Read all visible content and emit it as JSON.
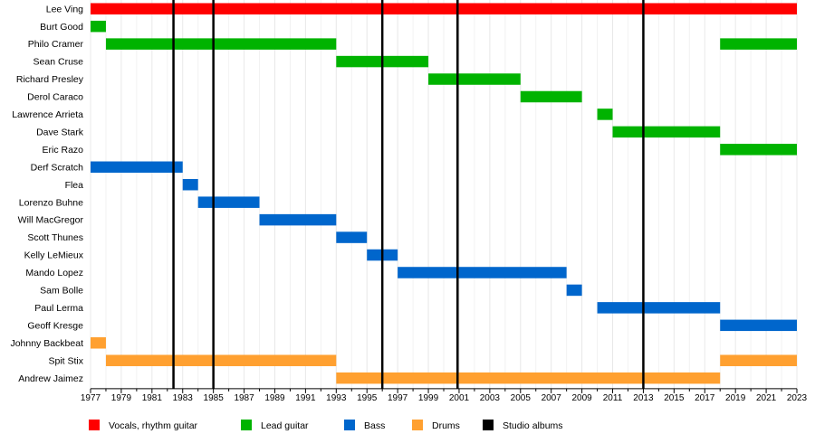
{
  "chart_data": {
    "type": "timeline",
    "x_range": [
      1977,
      2023
    ],
    "x_ticks": [
      "1977",
      "1979",
      "1981",
      "1983",
      "1985",
      "1987",
      "1989",
      "1991",
      "1993",
      "1995",
      "1997",
      "1999",
      "2001",
      "2003",
      "2005",
      "2007",
      "2009",
      "2011",
      "2013",
      "2015",
      "2017",
      "2019",
      "2021",
      "2023"
    ],
    "grid": true,
    "legend_position": "bottom",
    "roles": [
      {
        "key": "vocals",
        "label": "Vocals, rhythm guitar",
        "color": "#ff0000"
      },
      {
        "key": "lead",
        "label": "Lead guitar",
        "color": "#00b300"
      },
      {
        "key": "bass",
        "label": "Bass",
        "color": "#0066cc"
      },
      {
        "key": "drums",
        "label": "Drums",
        "color": "#ffa030"
      },
      {
        "key": "albums",
        "label": "Studio albums",
        "color": "#000000"
      }
    ],
    "members": [
      {
        "name": "Lee Ving",
        "role": "vocals",
        "spans": [
          [
            1977,
            2023
          ]
        ]
      },
      {
        "name": "Burt Good",
        "role": "lead",
        "spans": [
          [
            1977,
            1978
          ]
        ]
      },
      {
        "name": "Philo Cramer",
        "role": "lead",
        "spans": [
          [
            1978,
            1993
          ],
          [
            2018,
            2023
          ]
        ]
      },
      {
        "name": "Sean Cruse",
        "role": "lead",
        "spans": [
          [
            1993,
            1999
          ]
        ]
      },
      {
        "name": "Richard Presley",
        "role": "lead",
        "spans": [
          [
            1999,
            2005
          ]
        ]
      },
      {
        "name": "Derol Caraco",
        "role": "lead",
        "spans": [
          [
            2005,
            2009
          ]
        ]
      },
      {
        "name": "Lawrence Arrieta",
        "role": "lead",
        "spans": [
          [
            2010,
            2011
          ]
        ]
      },
      {
        "name": "Dave Stark",
        "role": "lead",
        "spans": [
          [
            2011,
            2018
          ]
        ]
      },
      {
        "name": "Eric Razo",
        "role": "lead",
        "spans": [
          [
            2018,
            2023
          ]
        ]
      },
      {
        "name": "Derf Scratch",
        "role": "bass",
        "spans": [
          [
            1977,
            1983
          ]
        ]
      },
      {
        "name": "Flea",
        "role": "bass",
        "spans": [
          [
            1983,
            1984
          ]
        ]
      },
      {
        "name": "Lorenzo Buhne",
        "role": "bass",
        "spans": [
          [
            1984,
            1988
          ]
        ]
      },
      {
        "name": "Will MacGregor",
        "role": "bass",
        "spans": [
          [
            1988,
            1993
          ]
        ]
      },
      {
        "name": "Scott Thunes",
        "role": "bass",
        "spans": [
          [
            1993,
            1995
          ]
        ]
      },
      {
        "name": "Kelly LeMieux",
        "role": "bass",
        "spans": [
          [
            1995,
            1997
          ]
        ]
      },
      {
        "name": "Mando Lopez",
        "role": "bass",
        "spans": [
          [
            1997,
            2008
          ]
        ]
      },
      {
        "name": "Sam Bolle",
        "role": "bass",
        "spans": [
          [
            2008,
            2009
          ]
        ]
      },
      {
        "name": "Paul Lerma",
        "role": "bass",
        "spans": [
          [
            2010,
            2018
          ]
        ]
      },
      {
        "name": "Geoff Kresge",
        "role": "bass",
        "spans": [
          [
            2018,
            2023
          ]
        ]
      },
      {
        "name": "Johnny Backbeat",
        "role": "drums",
        "spans": [
          [
            1977,
            1978
          ]
        ]
      },
      {
        "name": "Spit Stix",
        "role": "drums",
        "spans": [
          [
            1978,
            1993
          ],
          [
            2018,
            2023
          ]
        ]
      },
      {
        "name": "Andrew Jaimez",
        "role": "drums",
        "spans": [
          [
            1993,
            2018
          ]
        ]
      }
    ],
    "album_lines": [
      1982.4,
      1985,
      1996,
      2000.9,
      2013
    ]
  }
}
